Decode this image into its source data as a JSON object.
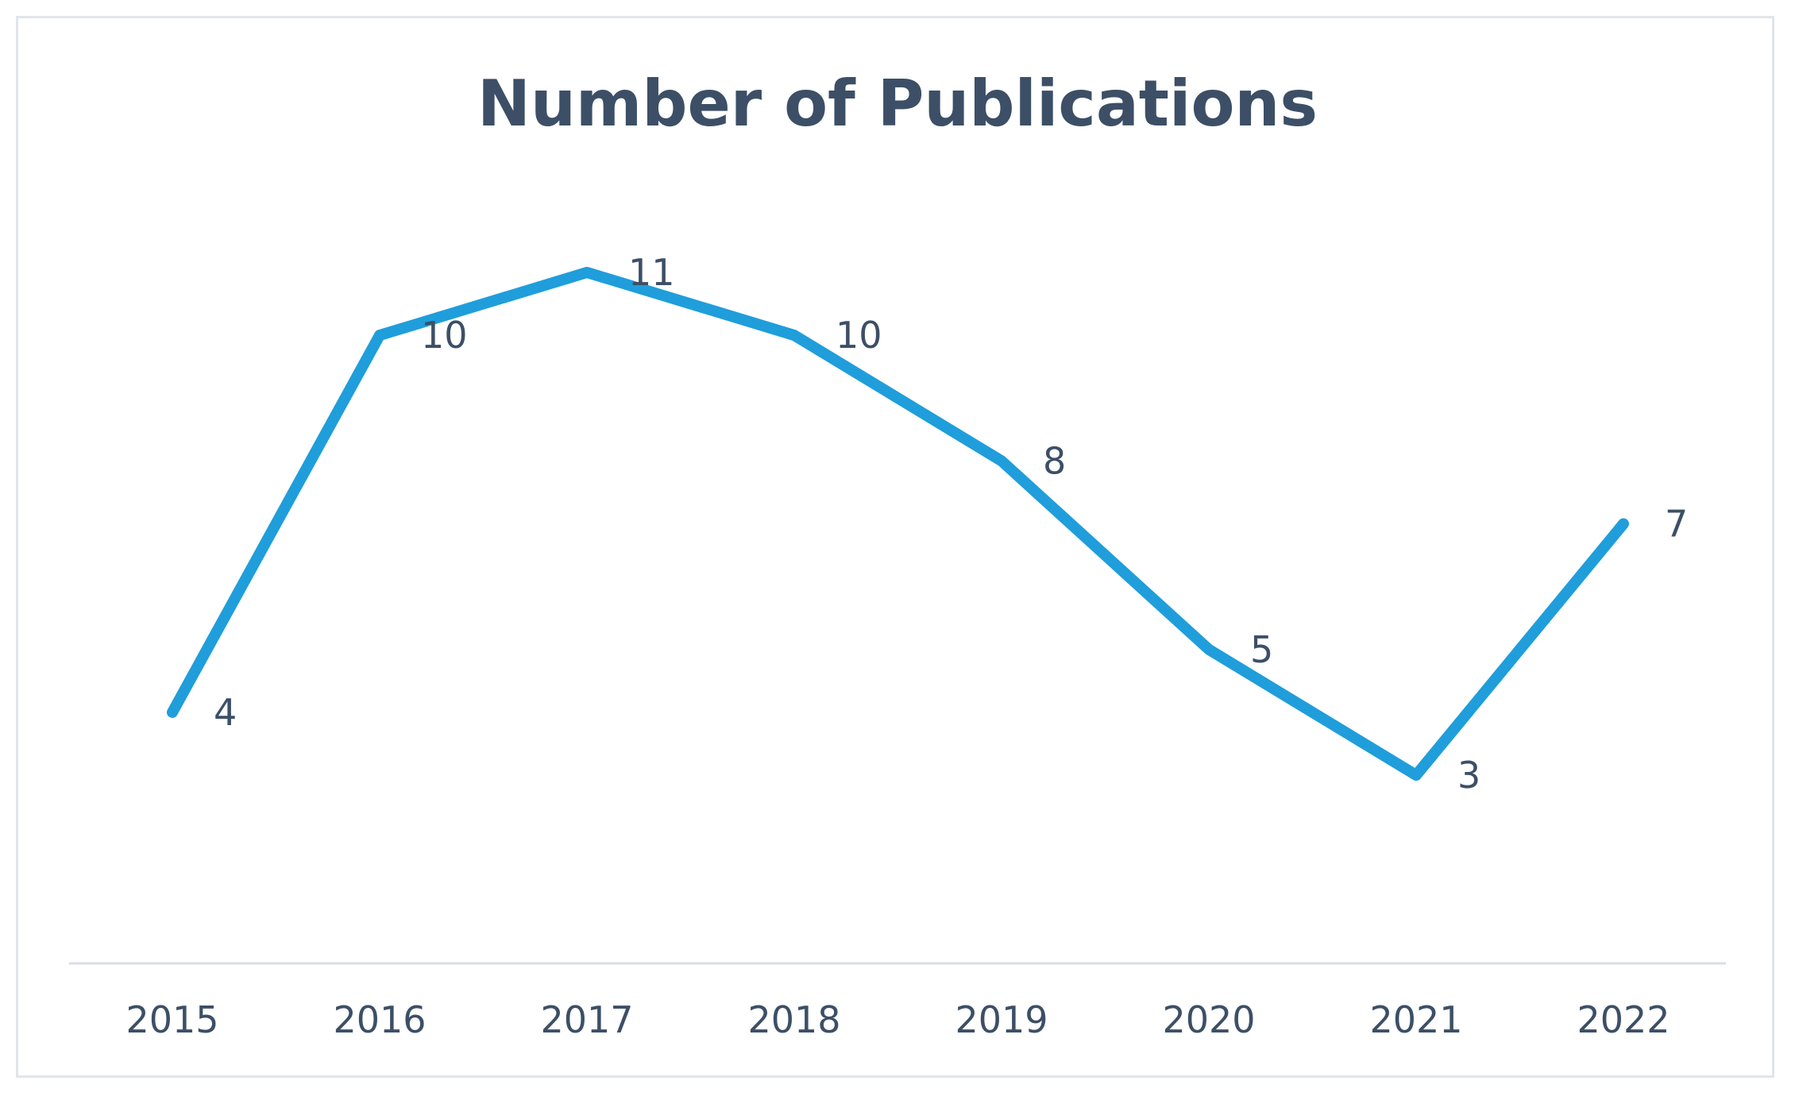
{
  "chart_data": {
    "type": "line",
    "title": "Number of Publications",
    "xlabel": "",
    "ylabel": "",
    "categories": [
      "2015",
      "2016",
      "2017",
      "2018",
      "2019",
      "2020",
      "2021",
      "2022"
    ],
    "series": [
      {
        "name": "Number of Publications",
        "values": [
          4,
          10,
          11,
          10,
          8,
          5,
          3,
          7
        ],
        "color": "#1f9edb"
      }
    ],
    "data_labels": [
      "4",
      "10",
      "11",
      "10",
      "8",
      "5",
      "3",
      "7"
    ],
    "ylim": [
      0,
      11
    ],
    "grid": false,
    "legend": "none",
    "axis_color": "#d9dee5",
    "text_color": "#3c4f66"
  }
}
